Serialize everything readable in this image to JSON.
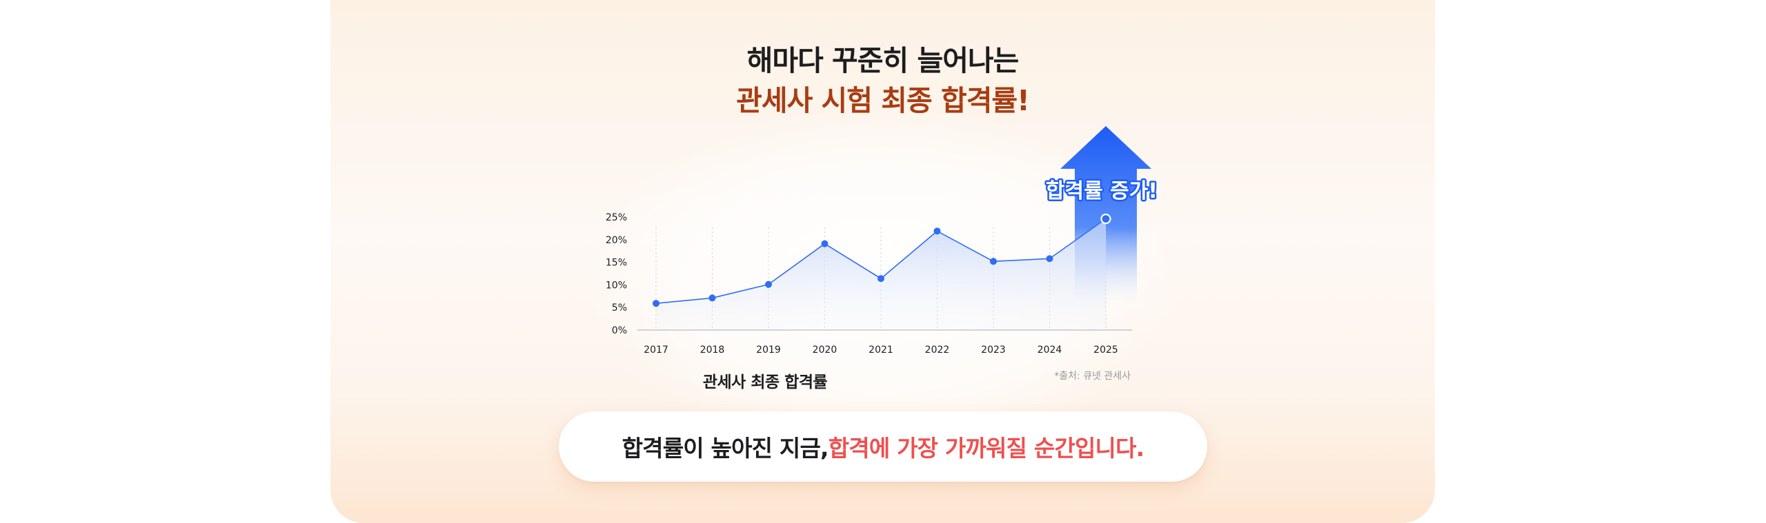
{
  "headline": {
    "line1": "해마다 꾸준히 늘어나는",
    "line2": "관세사 시험 최종 합격률!"
  },
  "colors": {
    "headline_accent": "#a83d12",
    "series": "#2f6df5",
    "arrow": "#1d5cf6",
    "bottom_accent": "#ef4f4f"
  },
  "chart_data": {
    "type": "line",
    "x": [
      "2017",
      "2018",
      "2019",
      "2020",
      "2021",
      "2022",
      "2023",
      "2024",
      "2025"
    ],
    "series": [
      {
        "values": [
          5.9,
          7.1,
          10.1,
          19.1,
          11.4,
          21.9,
          15.2,
          15.8,
          24.6
        ]
      }
    ],
    "yticks": [
      "0%",
      "5%",
      "10%",
      "15%",
      "20%",
      "25%"
    ],
    "ylim": [
      0,
      25
    ],
    "grid": "vertical-dotted",
    "annotation": "합격률 증가!",
    "title": "관세사 최종 합격률",
    "source_note": "*출처: 큐넷 관세사"
  },
  "bottom_banner": {
    "text_dark": "합격률이 높아진 지금, ",
    "text_accent": "합격에 가장 가까워질 순간입니다."
  }
}
